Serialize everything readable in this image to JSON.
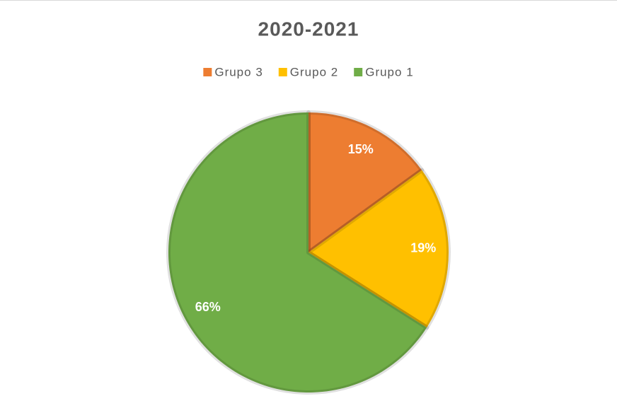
{
  "chart_data": {
    "type": "pie",
    "title": "2020-2021",
    "categories": [
      "Grupo 3",
      "Grupo 2",
      "Grupo 1"
    ],
    "values": [
      15,
      19,
      66
    ],
    "value_labels": [
      "15%",
      "19%",
      "66%"
    ],
    "colors": [
      "#ed7d31",
      "#ffc000",
      "#70ad47"
    ],
    "legend": "top"
  }
}
